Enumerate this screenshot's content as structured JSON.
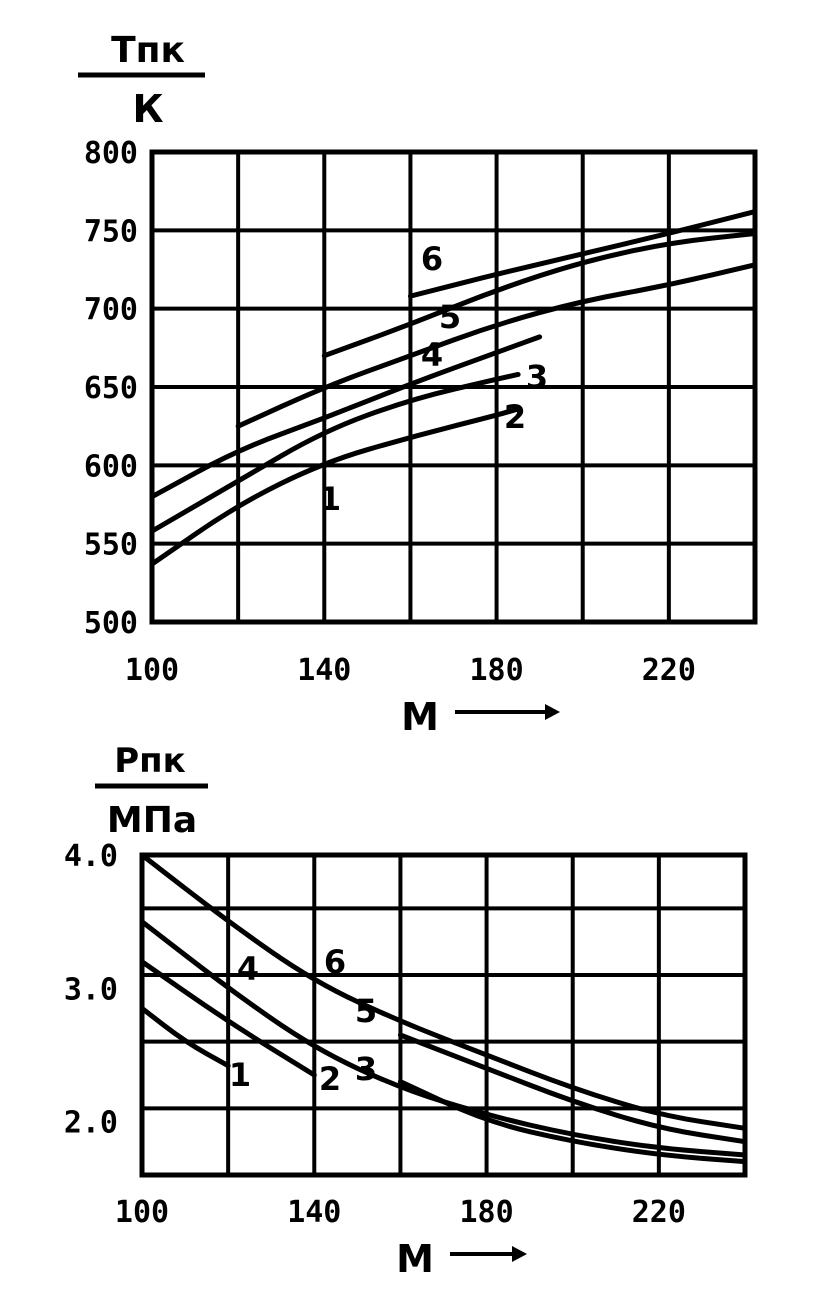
{
  "chart_data": [
    {
      "type": "line",
      "ylabel_top": "Тпк",
      "ylabel_bottom": "К",
      "xlabel": "М",
      "xlim": [
        100,
        240
      ],
      "ylim": [
        500,
        800
      ],
      "xticks": [
        100,
        140,
        180,
        220
      ],
      "yticks": [
        800,
        750,
        700,
        650,
        600,
        550,
        500
      ],
      "grid": true,
      "series": [
        {
          "name": "1",
          "x": [
            100,
            120,
            140,
            160,
            180,
            185
          ],
          "y": [
            537,
            575,
            602,
            618,
            632,
            636
          ]
        },
        {
          "name": "2",
          "x": [
            100,
            120,
            140,
            160,
            180,
            185
          ],
          "y": [
            558,
            590,
            622,
            642,
            655,
            658
          ]
        },
        {
          "name": "3",
          "x": [
            120,
            140,
            160,
            180,
            200,
            220,
            240
          ],
          "y": [
            625,
            650,
            670,
            690,
            705,
            715,
            728
          ]
        },
        {
          "name": "4",
          "x": [
            140,
            160,
            180,
            200,
            220,
            240
          ],
          "y": [
            670,
            690,
            712,
            730,
            742,
            748
          ]
        },
        {
          "name": "5",
          "x": [
            160,
            180,
            200,
            220,
            240
          ],
          "y": [
            708,
            722,
            735,
            748,
            762
          ]
        },
        {
          "name": "6",
          "x": [
            100,
            120,
            140,
            160,
            180,
            190
          ],
          "y": [
            580,
            610,
            630,
            652,
            672,
            682
          ]
        }
      ]
    },
    {
      "type": "line",
      "ylabel_top": "Рпк",
      "ylabel_bottom": "МПа",
      "xlabel": "М",
      "xlim": [
        100,
        240
      ],
      "ylim": [
        1.6,
        4.0
      ],
      "xticks": [
        100,
        140,
        180,
        220
      ],
      "yticks": [
        4.0,
        3.0,
        2.0
      ],
      "grid": true,
      "series": [
        {
          "name": "1",
          "x": [
            100,
            110,
            120
          ],
          "y": [
            2.85,
            2.6,
            2.42
          ]
        },
        {
          "name": "2",
          "x": [
            100,
            120,
            140
          ],
          "y": [
            3.2,
            2.75,
            2.35
          ]
        },
        {
          "name": "3",
          "x": [
            160,
            180,
            200,
            220,
            240
          ],
          "y": [
            2.3,
            2.0,
            1.85,
            1.75,
            1.7
          ]
        },
        {
          "name": "4",
          "x": [
            100,
            120,
            140,
            160,
            180,
            200,
            220,
            240
          ],
          "y": [
            3.5,
            3.0,
            2.55,
            2.25,
            2.05,
            1.9,
            1.8,
            1.75
          ]
        },
        {
          "name": "5",
          "x": [
            160,
            180,
            200,
            220,
            240
          ],
          "y": [
            2.65,
            2.4,
            2.15,
            1.95,
            1.85
          ]
        },
        {
          "name": "6",
          "x": [
            100,
            120,
            140,
            160,
            180,
            200,
            220,
            240
          ],
          "y": [
            4.0,
            3.5,
            3.05,
            2.75,
            2.5,
            2.25,
            2.05,
            1.95
          ]
        }
      ]
    }
  ]
}
